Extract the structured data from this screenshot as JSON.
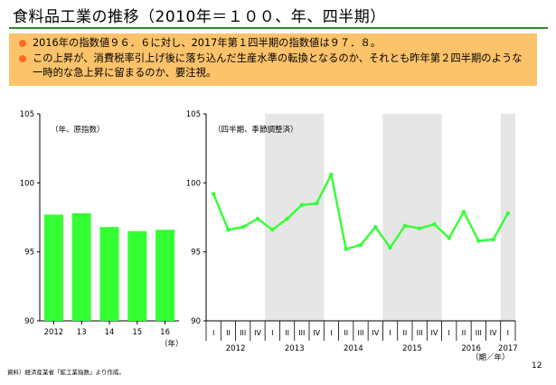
{
  "title": "食料品工業の推移（2010年＝１００、年、四半期）",
  "bullets": [
    "2016年の指数値９６．６に対し、2017年第１四半期の指数値は９７．８。",
    "この上昇が、消費税率引上げ後に落ち込んだ生産水準の転換となるのか、それとも昨年第２四半期のような一時的な急上昇に留まるのか、要注視。"
  ],
  "colors": {
    "accent": "#33ff33",
    "bullet": "#ff6a1f",
    "box": "#fcc36b",
    "shade": "#e6e6e6"
  },
  "chart_data": [
    {
      "type": "bar",
      "legend": "（年、原指数）",
      "categories": [
        "2012",
        "13",
        "14",
        "15",
        "16"
      ],
      "values": [
        97.7,
        97.8,
        96.8,
        96.5,
        96.6
      ],
      "ylim": [
        90,
        105
      ],
      "yticks": [
        "105",
        "100",
        "95",
        "90"
      ],
      "x_unit": "（年）",
      "color": "#33ff33"
    },
    {
      "type": "line",
      "legend": "（四半期、季節調整済）",
      "quarter_labels": [
        "I",
        "II",
        "III",
        "IV",
        "I",
        "II",
        "III",
        "IV",
        "I",
        "II",
        "III",
        "IV",
        "I",
        "II",
        "III",
        "IV",
        "I",
        "II",
        "III",
        "IV",
        "I"
      ],
      "years": [
        "2012",
        "2013",
        "2014",
        "2015",
        "2016",
        "2017"
      ],
      "values": [
        99.2,
        96.6,
        96.8,
        97.4,
        96.6,
        97.4,
        98.4,
        98.5,
        100.6,
        95.2,
        95.5,
        96.8,
        95.3,
        96.9,
        96.7,
        97.0,
        96.0,
        97.9,
        95.8,
        95.9,
        97.8
      ],
      "ylim": [
        90,
        105
      ],
      "yticks": [
        "105",
        "100",
        "95",
        "90"
      ],
      "x_unit": "（期／年）",
      "shaded_years": [
        "2013",
        "2015",
        "2017"
      ],
      "color": "#33ff33"
    }
  ],
  "source": "資料）経済産業省「鉱工業指数」より作成。",
  "page_number": "12"
}
